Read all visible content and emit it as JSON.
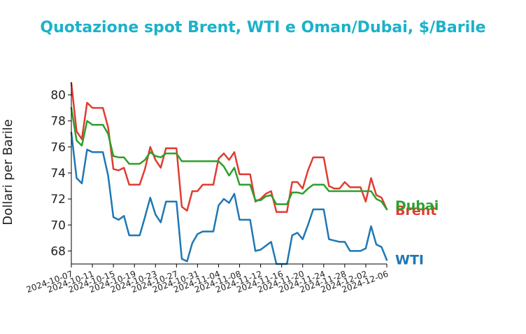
{
  "chart_data": {
    "type": "line",
    "title": "Quotazione spot Brent, WTI e Oman/Dubai, $/Barile",
    "ylabel": "Dollari per Barile",
    "xlabel": "",
    "ylim": [
      67,
      81
    ],
    "yticks": [
      68,
      70,
      72,
      74,
      76,
      78,
      80
    ],
    "x_start": "2024-10-07",
    "x_end": "2024-12-06",
    "xtick_labels": [
      "2024-10-07",
      "2024-10-11",
      "2024-10-15",
      "2024-10-19",
      "2024-10-23",
      "2024-10-27",
      "2024-10-31",
      "2024-11-04",
      "2024-11-08",
      "2024-11-12",
      "2024-11-16",
      "2024-11-20",
      "2024-11-24",
      "2024-11-28",
      "2024-12-02",
      "2024-12-06"
    ],
    "grid": false,
    "legend": "end-of-line labels",
    "title_color": "#1ab2c9",
    "series": [
      {
        "name": "Brent",
        "color": "#e03c31",
        "points": [
          [
            "2024-10-07",
            80.9
          ],
          [
            "2024-10-08",
            77.2
          ],
          [
            "2024-10-09",
            76.6
          ],
          [
            "2024-10-10",
            79.4
          ],
          [
            "2024-10-11",
            79.0
          ],
          [
            "2024-10-13",
            79.0
          ],
          [
            "2024-10-14",
            77.5
          ],
          [
            "2024-10-15",
            74.3
          ],
          [
            "2024-10-16",
            74.2
          ],
          [
            "2024-10-17",
            74.4
          ],
          [
            "2024-10-18",
            73.1
          ],
          [
            "2024-10-20",
            73.1
          ],
          [
            "2024-10-21",
            74.3
          ],
          [
            "2024-10-22",
            76.0
          ],
          [
            "2024-10-23",
            75.0
          ],
          [
            "2024-10-24",
            74.4
          ],
          [
            "2024-10-25",
            75.9
          ],
          [
            "2024-10-27",
            75.9
          ],
          [
            "2024-10-28",
            71.4
          ],
          [
            "2024-10-29",
            71.1
          ],
          [
            "2024-10-30",
            72.6
          ],
          [
            "2024-10-31",
            72.6
          ],
          [
            "2024-11-01",
            73.1
          ],
          [
            "2024-11-03",
            73.1
          ],
          [
            "2024-11-04",
            75.1
          ],
          [
            "2024-11-05",
            75.5
          ],
          [
            "2024-11-06",
            75.0
          ],
          [
            "2024-11-07",
            75.6
          ],
          [
            "2024-11-08",
            73.9
          ],
          [
            "2024-11-10",
            73.9
          ],
          [
            "2024-11-11",
            71.8
          ],
          [
            "2024-11-12",
            72.0
          ],
          [
            "2024-11-13",
            72.4
          ],
          [
            "2024-11-14",
            72.6
          ],
          [
            "2024-11-15",
            71.0
          ],
          [
            "2024-11-17",
            71.0
          ],
          [
            "2024-11-18",
            73.3
          ],
          [
            "2024-11-19",
            73.3
          ],
          [
            "2024-11-20",
            72.8
          ],
          [
            "2024-11-21",
            74.2
          ],
          [
            "2024-11-22",
            75.2
          ],
          [
            "2024-11-24",
            75.2
          ],
          [
            "2024-11-25",
            73.0
          ],
          [
            "2024-11-26",
            72.8
          ],
          [
            "2024-11-27",
            72.8
          ],
          [
            "2024-11-28",
            73.3
          ],
          [
            "2024-11-29",
            72.9
          ],
          [
            "2024-12-01",
            72.9
          ],
          [
            "2024-12-02",
            71.8
          ],
          [
            "2024-12-03",
            73.6
          ],
          [
            "2024-12-04",
            72.3
          ],
          [
            "2024-12-05",
            72.1
          ],
          [
            "2024-12-06",
            71.2
          ]
        ]
      },
      {
        "name": "Dubai",
        "color": "#2ca02c",
        "points": [
          [
            "2024-10-07",
            79.0
          ],
          [
            "2024-10-08",
            76.5
          ],
          [
            "2024-10-09",
            76.1
          ],
          [
            "2024-10-10",
            78.0
          ],
          [
            "2024-10-11",
            77.7
          ],
          [
            "2024-10-13",
            77.7
          ],
          [
            "2024-10-14",
            77.0
          ],
          [
            "2024-10-15",
            75.3
          ],
          [
            "2024-10-16",
            75.2
          ],
          [
            "2024-10-17",
            75.2
          ],
          [
            "2024-10-18",
            74.7
          ],
          [
            "2024-10-20",
            74.7
          ],
          [
            "2024-10-21",
            75.0
          ],
          [
            "2024-10-22",
            75.6
          ],
          [
            "2024-10-23",
            75.3
          ],
          [
            "2024-10-24",
            75.2
          ],
          [
            "2024-10-25",
            75.5
          ],
          [
            "2024-10-27",
            75.5
          ],
          [
            "2024-10-28",
            74.9
          ],
          [
            "2024-10-29",
            74.9
          ],
          [
            "2024-10-30",
            74.9
          ],
          [
            "2024-10-31",
            74.9
          ],
          [
            "2024-11-01",
            74.9
          ],
          [
            "2024-11-03",
            74.9
          ],
          [
            "2024-11-04",
            74.9
          ],
          [
            "2024-11-05",
            74.5
          ],
          [
            "2024-11-06",
            73.8
          ],
          [
            "2024-11-07",
            74.4
          ],
          [
            "2024-11-08",
            73.1
          ],
          [
            "2024-11-10",
            73.1
          ],
          [
            "2024-11-11",
            71.9
          ],
          [
            "2024-11-12",
            71.9
          ],
          [
            "2024-11-13",
            72.2
          ],
          [
            "2024-11-14",
            72.3
          ],
          [
            "2024-11-15",
            71.6
          ],
          [
            "2024-11-17",
            71.6
          ],
          [
            "2024-11-18",
            72.5
          ],
          [
            "2024-11-19",
            72.5
          ],
          [
            "2024-11-20",
            72.4
          ],
          [
            "2024-11-21",
            72.8
          ],
          [
            "2024-11-22",
            73.1
          ],
          [
            "2024-11-24",
            73.1
          ],
          [
            "2024-11-25",
            72.6
          ],
          [
            "2024-11-26",
            72.6
          ],
          [
            "2024-11-27",
            72.6
          ],
          [
            "2024-11-28",
            72.6
          ],
          [
            "2024-11-29",
            72.6
          ],
          [
            "2024-12-01",
            72.6
          ],
          [
            "2024-12-02",
            72.6
          ],
          [
            "2024-12-03",
            72.6
          ],
          [
            "2024-12-04",
            72.0
          ],
          [
            "2024-12-05",
            71.8
          ],
          [
            "2024-12-06",
            71.2
          ]
        ]
      },
      {
        "name": "WTI",
        "color": "#1f77b4",
        "points": [
          [
            "2024-10-07",
            77.1
          ],
          [
            "2024-10-08",
            73.6
          ],
          [
            "2024-10-09",
            73.2
          ],
          [
            "2024-10-10",
            75.8
          ],
          [
            "2024-10-11",
            75.6
          ],
          [
            "2024-10-13",
            75.6
          ],
          [
            "2024-10-14",
            73.8
          ],
          [
            "2024-10-15",
            70.6
          ],
          [
            "2024-10-16",
            70.4
          ],
          [
            "2024-10-17",
            70.7
          ],
          [
            "2024-10-18",
            69.2
          ],
          [
            "2024-10-20",
            69.2
          ],
          [
            "2024-10-21",
            70.6
          ],
          [
            "2024-10-22",
            72.1
          ],
          [
            "2024-10-23",
            70.8
          ],
          [
            "2024-10-24",
            70.2
          ],
          [
            "2024-10-25",
            71.8
          ],
          [
            "2024-10-27",
            71.8
          ],
          [
            "2024-10-28",
            67.4
          ],
          [
            "2024-10-29",
            67.2
          ],
          [
            "2024-10-30",
            68.6
          ],
          [
            "2024-10-31",
            69.3
          ],
          [
            "2024-11-01",
            69.5
          ],
          [
            "2024-11-03",
            69.5
          ],
          [
            "2024-11-04",
            71.5
          ],
          [
            "2024-11-05",
            72.0
          ],
          [
            "2024-11-06",
            71.7
          ],
          [
            "2024-11-07",
            72.4
          ],
          [
            "2024-11-08",
            70.4
          ],
          [
            "2024-11-10",
            70.4
          ],
          [
            "2024-11-11",
            68.0
          ],
          [
            "2024-11-12",
            68.1
          ],
          [
            "2024-11-13",
            68.4
          ],
          [
            "2024-11-14",
            68.7
          ],
          [
            "2024-11-15",
            67.0
          ],
          [
            "2024-11-17",
            67.0
          ],
          [
            "2024-11-18",
            69.2
          ],
          [
            "2024-11-19",
            69.4
          ],
          [
            "2024-11-20",
            68.9
          ],
          [
            "2024-11-21",
            70.0
          ],
          [
            "2024-11-22",
            71.2
          ],
          [
            "2024-11-24",
            71.2
          ],
          [
            "2024-11-25",
            68.9
          ],
          [
            "2024-11-26",
            68.8
          ],
          [
            "2024-11-27",
            68.7
          ],
          [
            "2024-11-28",
            68.7
          ],
          [
            "2024-11-29",
            68.0
          ],
          [
            "2024-12-01",
            68.0
          ],
          [
            "2024-12-02",
            68.2
          ],
          [
            "2024-12-03",
            69.9
          ],
          [
            "2024-12-04",
            68.5
          ],
          [
            "2024-12-05",
            68.3
          ],
          [
            "2024-12-06",
            67.3
          ]
        ]
      }
    ]
  }
}
